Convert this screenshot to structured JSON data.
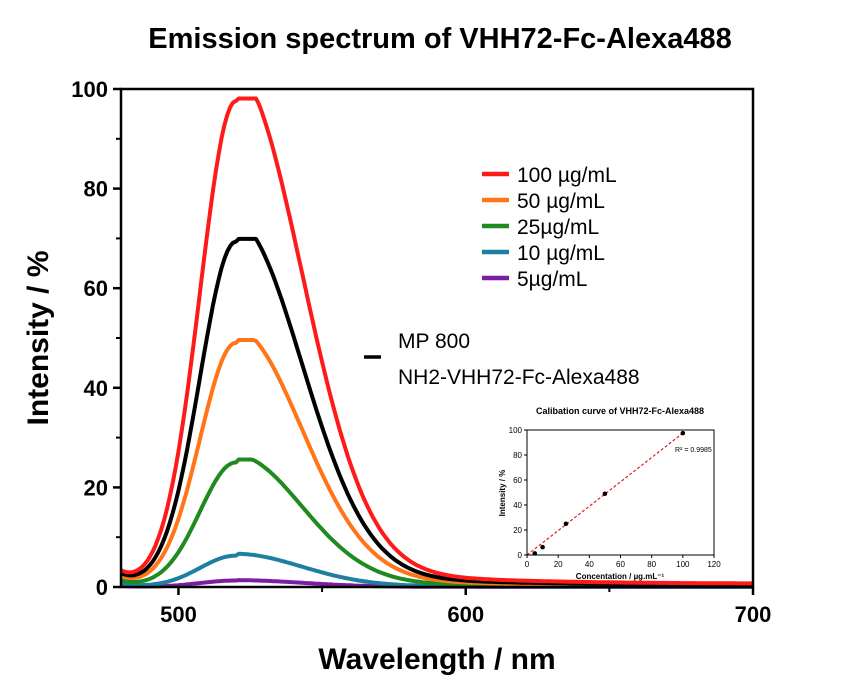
{
  "chart_data": [
    {
      "type": "line",
      "title": "Emission spectrum of VHH72-Fc-Alexa488",
      "xlabel": "Wavelength / nm",
      "ylabel": "Intensity / %",
      "xlim": [
        480,
        700
      ],
      "ylim": [
        0,
        100
      ],
      "xticks": [
        500,
        600,
        700
      ],
      "yticks": [
        0,
        20,
        40,
        60,
        80,
        100
      ],
      "grid": false,
      "legend_position": "top-right",
      "peak_wavelength": 520,
      "series": [
        {
          "name": "100 µg/mL",
          "color": "#ff1a1a",
          "peak": 97.5,
          "start_value": 2.8,
          "end_value": 0.5
        },
        {
          "name": "50 µg/mL",
          "color": "#ff7518",
          "peak": 49,
          "start_value": 2.0,
          "end_value": 0.2
        },
        {
          "name": "25µg/mL",
          "color": "#1f8a1f",
          "peak": 25,
          "start_value": 1.2,
          "end_value": 0.1
        },
        {
          "name": "10 µg/mL",
          "color": "#1f7fa0",
          "peak": 6.3,
          "start_value": 0.6,
          "end_value": 0.05
        },
        {
          "name": "5µg/mL",
          "color": "#7b1fa2",
          "peak": 1.3,
          "start_value": 0.2,
          "end_value": 0.02
        },
        {
          "name": "MP 800 NH2-VHH72-Fc-Alexa488",
          "color": "#000000",
          "peak": 69.3,
          "start_value": 2.4,
          "end_value": 0.3
        }
      ],
      "legend_extra_lines": [
        "MP 800",
        "NH2-VHH72-Fc-Alexa488"
      ]
    },
    {
      "type": "scatter",
      "title": "Calibation curve of VHH72-Fc-Alexa488",
      "xlabel": "Concentation / µg.mL⁻¹",
      "ylabel": "Intensity / %",
      "xlim": [
        0,
        120
      ],
      "ylim": [
        0,
        100
      ],
      "xticks": [
        0,
        20,
        40,
        60,
        80,
        100,
        120
      ],
      "yticks": [
        0,
        20,
        40,
        60,
        80,
        100
      ],
      "annotation": "R² = 0.9985",
      "points": [
        {
          "x": 5,
          "y": 1.3
        },
        {
          "x": 10,
          "y": 6.3
        },
        {
          "x": 25,
          "y": 25
        },
        {
          "x": 50,
          "y": 49
        },
        {
          "x": 100,
          "y": 97.5
        }
      ],
      "fit_line": {
        "x": [
          0,
          100
        ],
        "y": [
          0,
          97.5
        ],
        "color": "#e02020",
        "style": "dashed"
      }
    }
  ]
}
